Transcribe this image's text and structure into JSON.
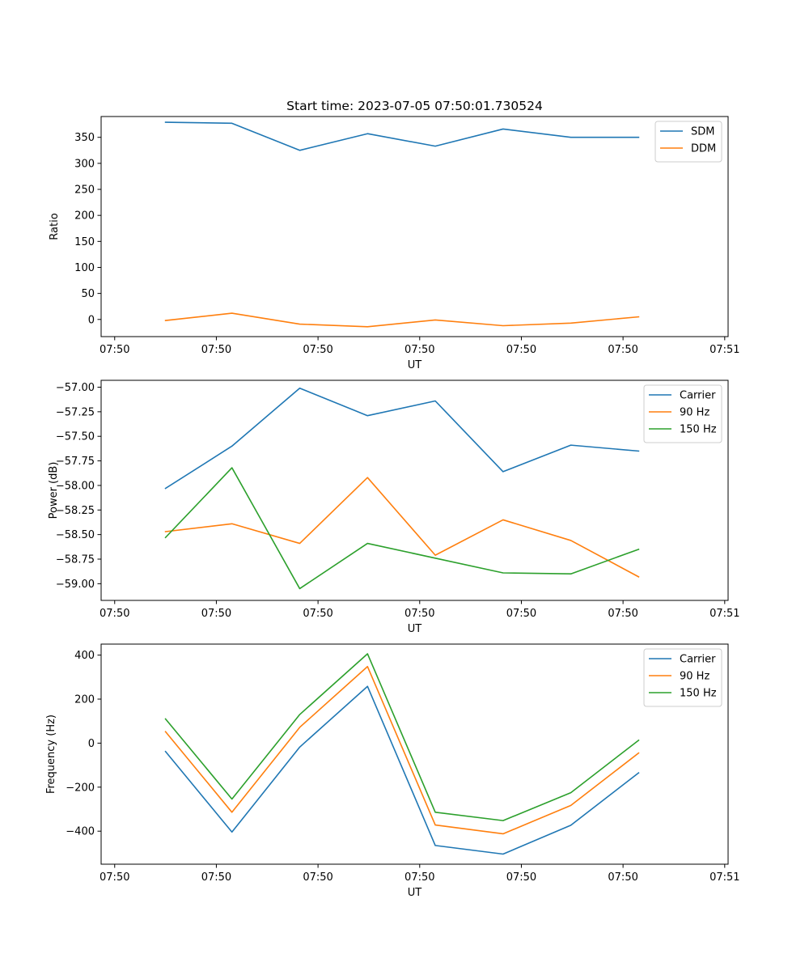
{
  "figure": {
    "title": "Start time: 2023-07-05 07:50:01.730524"
  },
  "chart_data": [
    {
      "type": "line",
      "title": "Start time: 2023-07-05 07:50:01.730524",
      "xlabel": "UT",
      "ylabel": "Ratio",
      "xlim": [
        -0.5,
        8.75
      ],
      "ylim": [
        -33,
        390
      ],
      "x_ticks": [
        {
          "value": -0.3,
          "label": "07:50"
        },
        {
          "value": 1.2,
          "label": "07:50"
        },
        {
          "value": 2.7,
          "label": "07:50"
        },
        {
          "value": 4.2,
          "label": "07:50"
        },
        {
          "value": 5.7,
          "label": "07:50"
        },
        {
          "value": 7.2,
          "label": "07:50"
        },
        {
          "value": 8.7,
          "label": "07:51"
        }
      ],
      "y_ticks": [
        0,
        50,
        100,
        150,
        200,
        250,
        300,
        350
      ],
      "x": [
        0.45,
        1.43,
        2.43,
        3.43,
        4.43,
        5.43,
        6.43,
        7.43
      ],
      "series": [
        {
          "name": "SDM",
          "color": "#1f77b4",
          "values": [
            379,
            377,
            325,
            357,
            333,
            366,
            350,
            350
          ]
        },
        {
          "name": "DDM",
          "color": "#ff7f0e",
          "values": [
            -2,
            12,
            -9,
            -14,
            -1,
            -12,
            -7,
            5
          ]
        }
      ],
      "legend": "top-right",
      "grid": false
    },
    {
      "type": "line",
      "title": "",
      "xlabel": "UT",
      "ylabel": "Power (dB)",
      "xlim": [
        -0.5,
        8.75
      ],
      "ylim": [
        -59.17,
        -56.93
      ],
      "x_ticks": [
        {
          "value": -0.3,
          "label": "07:50"
        },
        {
          "value": 1.2,
          "label": "07:50"
        },
        {
          "value": 2.7,
          "label": "07:50"
        },
        {
          "value": 4.2,
          "label": "07:50"
        },
        {
          "value": 5.7,
          "label": "07:50"
        },
        {
          "value": 7.2,
          "label": "07:50"
        },
        {
          "value": 8.7,
          "label": "07:51"
        }
      ],
      "y_ticks": [
        -59.0,
        -58.75,
        -58.5,
        -58.25,
        -58.0,
        -57.75,
        -57.5,
        -57.25,
        -57.0
      ],
      "y_tick_labels": [
        "−59.00",
        "−58.75",
        "−58.50",
        "−58.25",
        "−58.00",
        "−57.75",
        "−57.50",
        "−57.25",
        "−57.00"
      ],
      "x": [
        0.45,
        1.43,
        2.43,
        3.43,
        4.43,
        5.43,
        6.43,
        7.43
      ],
      "series": [
        {
          "name": "Carrier",
          "color": "#1f77b4",
          "values": [
            -58.03,
            -57.6,
            -57.01,
            -57.29,
            -57.14,
            -57.86,
            -57.59,
            -57.65
          ]
        },
        {
          "name": "90 Hz",
          "color": "#ff7f0e",
          "values": [
            -58.47,
            -58.39,
            -58.59,
            -57.92,
            -58.71,
            -58.35,
            -58.56,
            -58.93
          ]
        },
        {
          "name": "150 Hz",
          "color": "#2ca02c",
          "values": [
            -58.53,
            -57.82,
            -59.05,
            -58.59,
            -58.74,
            -58.89,
            -58.9,
            -58.65
          ]
        }
      ],
      "legend": "top-right",
      "grid": false
    },
    {
      "type": "line",
      "title": "",
      "xlabel": "UT",
      "ylabel": "Frequency (Hz)",
      "xlim": [
        -0.5,
        8.75
      ],
      "ylim": [
        -550,
        450
      ],
      "x_ticks": [
        {
          "value": -0.3,
          "label": "07:50"
        },
        {
          "value": 1.2,
          "label": "07:50"
        },
        {
          "value": 2.7,
          "label": "07:50"
        },
        {
          "value": 4.2,
          "label": "07:50"
        },
        {
          "value": 5.7,
          "label": "07:50"
        },
        {
          "value": 7.2,
          "label": "07:50"
        },
        {
          "value": 8.7,
          "label": "07:51"
        }
      ],
      "y_ticks": [
        -400,
        -200,
        0,
        200,
        400
      ],
      "y_tick_labels": [
        "−400",
        "−200",
        "0",
        "200",
        "400"
      ],
      "x": [
        0.45,
        1.43,
        2.43,
        3.43,
        4.43,
        5.43,
        6.43,
        7.43
      ],
      "series": [
        {
          "name": "Carrier",
          "color": "#1f77b4",
          "values": [
            -38,
            -404,
            -18,
            258,
            -465,
            -504,
            -373,
            -135
          ]
        },
        {
          "name": "90 Hz",
          "color": "#ff7f0e",
          "values": [
            52,
            -314,
            72,
            348,
            -372,
            -412,
            -283,
            -45
          ]
        },
        {
          "name": "150 Hz",
          "color": "#2ca02c",
          "values": [
            110,
            -254,
            130,
            406,
            -314,
            -352,
            -225,
            13
          ]
        }
      ],
      "legend": "top-right",
      "grid": false
    }
  ]
}
